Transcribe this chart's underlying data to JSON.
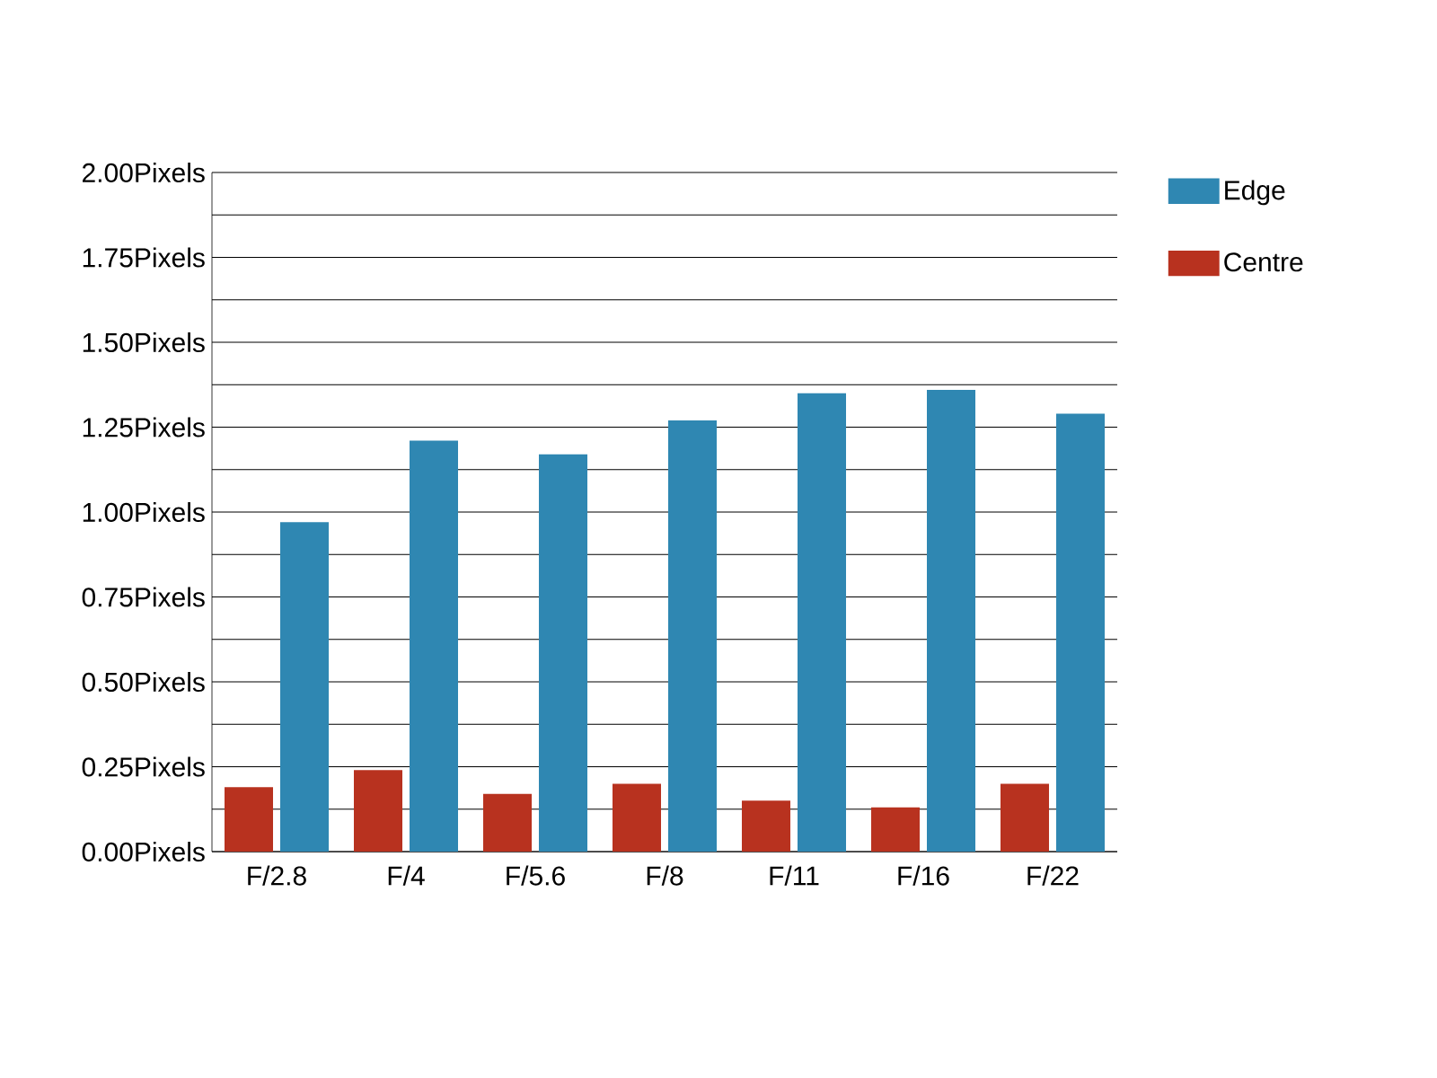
{
  "chart_data": {
    "type": "bar",
    "categories": [
      "F/2.8",
      "F/4",
      "F/5.6",
      "F/8",
      "F/11",
      "F/16",
      "F/22"
    ],
    "series": [
      {
        "name": "Centre",
        "color": "#b8321f",
        "values": [
          0.19,
          0.24,
          0.17,
          0.2,
          0.15,
          0.13,
          0.2
        ]
      },
      {
        "name": "Edge",
        "color": "#2f87b2",
        "values": [
          0.97,
          1.21,
          1.17,
          1.27,
          1.35,
          1.36,
          1.29
        ]
      }
    ],
    "ylim": [
      0,
      2
    ],
    "yticks": [
      {
        "value": 0,
        "label": "0.00Pixels"
      },
      {
        "value": 0.125,
        "label": null
      },
      {
        "value": 0.25,
        "label": "0.25Pixels"
      },
      {
        "value": 0.375,
        "label": null
      },
      {
        "value": 0.5,
        "label": "0.50Pixels"
      },
      {
        "value": 0.625,
        "label": null
      },
      {
        "value": 0.75,
        "label": "0.75Pixels"
      },
      {
        "value": 0.875,
        "label": null
      },
      {
        "value": 1.0,
        "label": "1.00Pixels"
      },
      {
        "value": 1.125,
        "label": null
      },
      {
        "value": 1.25,
        "label": "1.25Pixels"
      },
      {
        "value": 1.375,
        "label": null
      },
      {
        "value": 1.5,
        "label": "1.50Pixels"
      },
      {
        "value": 1.625,
        "label": null
      },
      {
        "value": 1.75,
        "label": "1.75Pixels"
      },
      {
        "value": 1.875,
        "label": null
      },
      {
        "value": 2.0,
        "label": "2.00Pixels"
      }
    ],
    "grid": "y",
    "legend": "top right"
  }
}
